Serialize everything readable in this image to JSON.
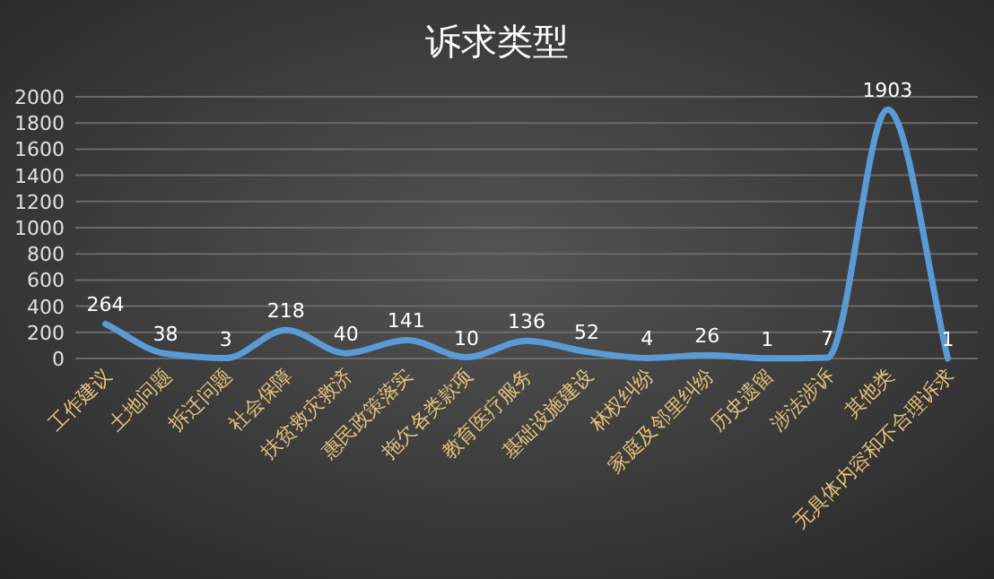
{
  "chart_data": {
    "type": "line",
    "title": "诉求类型",
    "categories": [
      "工作建议",
      "土地问题",
      "拆迁问题",
      "社会保障",
      "扶贫救灾救济",
      "惠民政策落实",
      "拖欠各类款项",
      "教育医疗服务",
      "基础设施建设",
      "林权纠纷",
      "家庭及邻里纠纷",
      "历史遗留",
      "涉法涉诉",
      "其他类",
      "无具体内容和不合理诉求"
    ],
    "values": [
      264,
      38,
      3,
      218,
      40,
      141,
      10,
      136,
      52,
      4,
      26,
      1,
      7,
      1903,
      1
    ],
    "color": "#5b9bd5",
    "ylim": [
      0,
      2000
    ],
    "yticks": [
      0,
      200,
      400,
      600,
      800,
      1000,
      1200,
      1400,
      1600,
      1800,
      2000
    ],
    "grid": "y",
    "data_labels": true,
    "marker": "none",
    "line_style": "solid"
  }
}
